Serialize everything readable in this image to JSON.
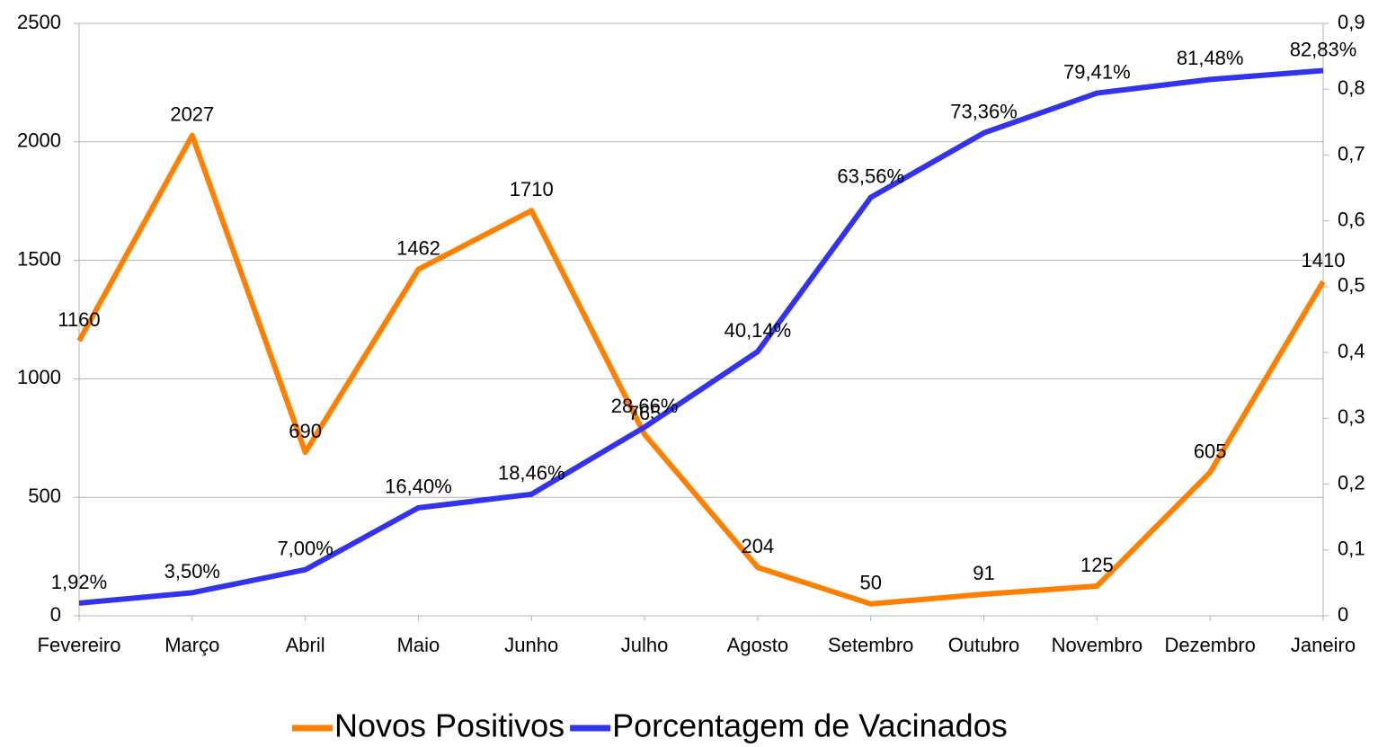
{
  "chart_data": {
    "type": "line",
    "categories": [
      "Fevereiro",
      "Março",
      "Abril",
      "Maio",
      "Junho",
      "Julho",
      "Agosto",
      "Setembro",
      "Outubro",
      "Novembro",
      "Dezembro",
      "Janeiro"
    ],
    "series": [
      {
        "name": "Novos Positivos",
        "color": "#ff8000",
        "values": [
          1160,
          2027,
          690,
          1462,
          1710,
          765,
          204,
          50,
          91,
          125,
          605,
          1410
        ]
      },
      {
        "name": "Porcentagem de Vacinados",
        "color": "#3333ee",
        "axis": "y2",
        "values": [
          0.0192,
          0.035,
          0.07,
          0.164,
          0.1846,
          0.2866,
          0.4014,
          0.6356,
          0.7336,
          0.7941,
          0.8148,
          0.8283
        ],
        "value_labels": [
          "1,92%",
          "3,50%",
          "7,00%",
          "16,40%",
          "18,46%",
          "28,66%",
          "40,14%",
          "63,56%",
          "73,36%",
          "79,41%",
          "81,48%",
          "82,83%"
        ]
      }
    ],
    "ylim": [
      0,
      2500
    ],
    "yticks": [
      0,
      500,
      1000,
      1500,
      2000,
      2500
    ],
    "y2lim": [
      0,
      0.9
    ],
    "y2ticks": [
      0,
      {
        "value": 0.1,
        "label": "0,1"
      },
      {
        "value": 0.2,
        "label": "0,2"
      },
      {
        "value": 0.3,
        "label": "0,3"
      },
      {
        "value": 0.4,
        "label": "0,4"
      },
      {
        "value": 0.5,
        "label": "0,5"
      },
      {
        "value": 0.6,
        "label": "0,6"
      },
      {
        "value": 0.7,
        "label": "0,7"
      },
      {
        "value": 0.8,
        "label": "0,8"
      },
      {
        "value": 0.9,
        "label": "0,9"
      }
    ],
    "grid": true,
    "legend": "bottom"
  }
}
